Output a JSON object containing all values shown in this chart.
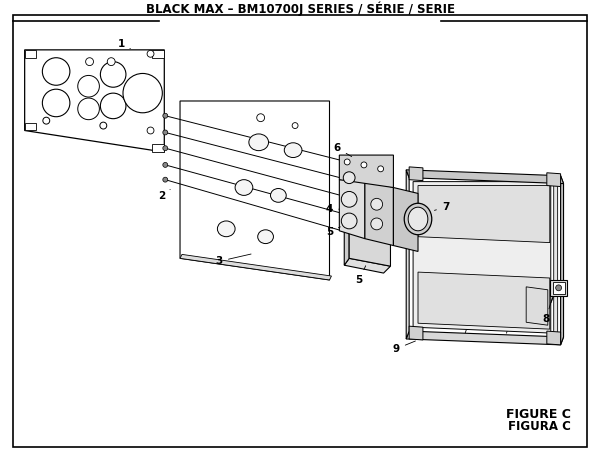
{
  "title": "BLACK MAX – BM10700J SERIES / SÉRIE / SERIE",
  "figure_label_1": "FIGURE C",
  "figure_label_2": "FIGURA C",
  "bg_color": "#ffffff",
  "border_color": "#000000",
  "line_color": "#000000",
  "title_fontsize": 8.5,
  "label_fontsize": 7.5,
  "figure_label_fontsize": 9
}
